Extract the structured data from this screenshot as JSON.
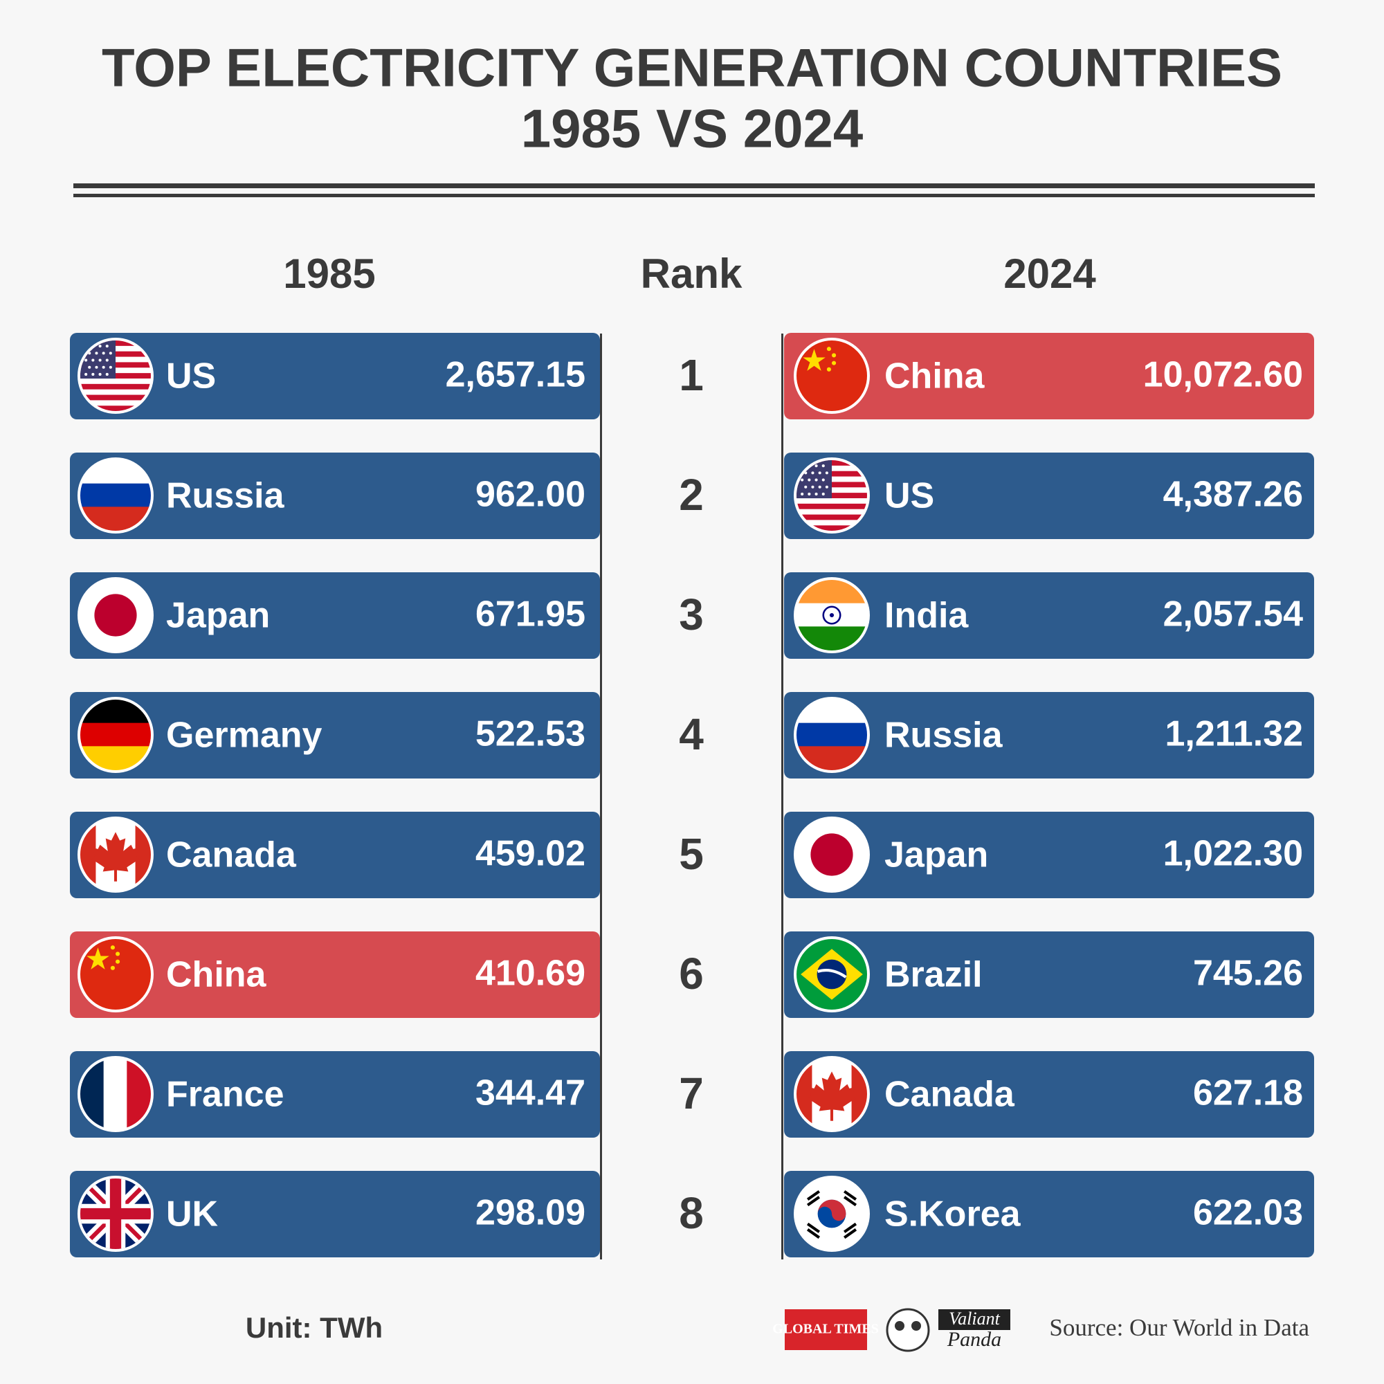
{
  "header": {
    "title": [
      "TOP ELECTRICITY GENERATION COUNTRIES",
      "1985 VS 2024"
    ]
  },
  "columns": [
    "1985",
    "Rank",
    "2024"
  ],
  "rows": [
    {
      "rank": "1",
      "left": {
        "country": "US",
        "value": "2,657.15",
        "color": "#2d5b8d"
      },
      "right": {
        "country": "China",
        "value": "10,072.60",
        "color": "#d64b50"
      }
    },
    {
      "rank": "2",
      "left": {
        "country": "Russia",
        "value": "962.00",
        "color": "#2d5b8d"
      },
      "right": {
        "country": "US",
        "value": "4,387.26",
        "color": "#2d5b8d"
      }
    },
    {
      "rank": "3",
      "left": {
        "country": "Japan",
        "value": "671.95",
        "color": "#2d5b8d"
      },
      "right": {
        "country": "India",
        "value": "2,057.54",
        "color": "#2d5b8d"
      }
    },
    {
      "rank": "4",
      "left": {
        "country": "Germany",
        "value": "522.53",
        "color": "#2d5b8d"
      },
      "right": {
        "country": "Russia",
        "value": "1,211.32",
        "color": "#2d5b8d"
      }
    },
    {
      "rank": "5",
      "left": {
        "country": "Canada",
        "value": "459.02",
        "color": "#2d5b8d"
      },
      "right": {
        "country": "Japan",
        "value": "1,022.30",
        "color": "#2d5b8d"
      }
    },
    {
      "rank": "6",
      "left": {
        "country": "China",
        "value": "410.69",
        "color": "#d64b50"
      },
      "right": {
        "country": "Brazil",
        "value": "745.26",
        "color": "#2d5b8d"
      }
    },
    {
      "rank": "7",
      "left": {
        "country": "France",
        "value": "344.47",
        "color": "#2d5b8d"
      },
      "right": {
        "country": "Canada",
        "value": "627.18",
        "color": "#2d5b8d"
      }
    },
    {
      "rank": "8",
      "left": {
        "country": "UK",
        "value": "298.09",
        "color": "#2d5b8d"
      },
      "right": {
        "country": "S.Korea",
        "value": "622.03",
        "color": "#2d5b8d"
      }
    }
  ],
  "footer": {
    "unit": "Unit: TWh",
    "logos": [
      "GLOBAL TIMES",
      "Valiant",
      "Panda"
    ],
    "source": "Source: Our World in Data"
  }
}
